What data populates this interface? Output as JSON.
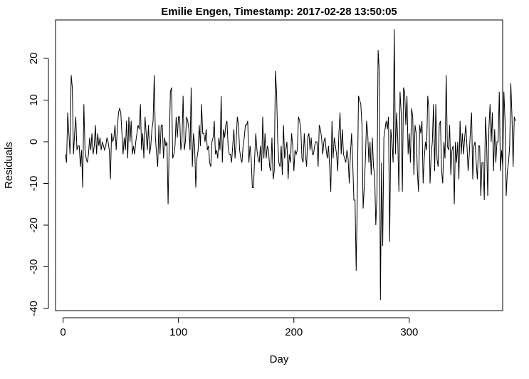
{
  "chart_data": {
    "type": "line",
    "title": "Emilie Engen, Timestamp: 2017-02-28 13:50:05",
    "xlabel": "Day",
    "ylabel": "Residuals",
    "xlim": [
      -5,
      380
    ],
    "ylim": [
      -40,
      27
    ],
    "x_ticks": [
      0,
      100,
      200,
      300
    ],
    "x_tick_labels": [
      "0",
      "100",
      "200",
      "300"
    ],
    "y_ticks": [
      -40,
      -30,
      -20,
      -10,
      0,
      10,
      20
    ],
    "y_tick_labels": [
      "-40",
      "-30",
      "-20",
      "-10",
      "0",
      "10",
      "20"
    ],
    "grid": false,
    "legend": "none",
    "line_color": "#000000",
    "series": [
      {
        "x_start": 2,
        "x_step": 1,
        "values": [
          -3,
          -5,
          7,
          2,
          -3,
          16,
          13,
          -3,
          2,
          6,
          -2,
          -1,
          -1,
          -6,
          -2,
          -11,
          9,
          -2,
          -4,
          -5,
          -3,
          1,
          -2,
          2,
          -3,
          -1,
          4,
          -3,
          2,
          -1,
          1,
          -2,
          0,
          -1,
          -2,
          -1,
          1,
          0,
          -2,
          -9,
          2,
          0,
          1,
          4,
          -2,
          3,
          7,
          8,
          7,
          2,
          -3,
          1,
          -2,
          5,
          -4,
          6,
          0,
          5,
          -3,
          -1,
          -3,
          0,
          2,
          4,
          3,
          9,
          -2,
          2,
          -4,
          6,
          2,
          -2,
          4,
          -3,
          -1,
          3,
          5,
          16,
          1,
          -3,
          -6,
          4,
          -3,
          4,
          4,
          -4,
          1,
          -1,
          0,
          -15,
          0,
          12,
          13,
          -4,
          -3,
          -1,
          6,
          1,
          6,
          6,
          -2,
          0,
          11,
          -2,
          0,
          6,
          5,
          3,
          -2,
          13,
          -6,
          2,
          -1,
          -11,
          -4,
          -2,
          4,
          -1,
          9,
          2,
          2,
          0,
          3,
          -2,
          -1,
          -5,
          -6,
          0,
          1,
          5,
          -3,
          -2,
          -4,
          1,
          -2,
          11,
          -5,
          3,
          1,
          4,
          5,
          -1,
          -3,
          -3,
          -5,
          -1,
          3,
          -4,
          0,
          6,
          4,
          -2,
          -4,
          -5,
          -1,
          1,
          4,
          4,
          5,
          -5,
          -1,
          -4,
          -11,
          -11,
          -4,
          2,
          -2,
          -4,
          -5,
          -1,
          -7,
          6,
          -4,
          2,
          -4,
          -1,
          -2,
          -6,
          -7,
          1,
          -9,
          -7,
          17,
          12,
          0,
          -5,
          -6,
          -1,
          -8,
          4,
          -4,
          -2,
          0,
          -9,
          -3,
          -5,
          2,
          -1,
          -7,
          -2,
          -3,
          -2,
          6,
          5,
          3,
          -4,
          -5,
          2,
          -3,
          -6,
          1,
          2,
          -2,
          1,
          -3,
          -3,
          -1,
          0,
          0,
          -6,
          4,
          3,
          1,
          -3,
          0,
          1,
          -2,
          -4,
          -1,
          -6,
          -12,
          5,
          -4,
          1,
          -1,
          -3,
          -7,
          2,
          7,
          -3,
          3,
          -3,
          -4,
          -5,
          -2,
          -4,
          -10,
          -3,
          2,
          -5,
          -14,
          -14,
          -31,
          -12,
          11,
          10,
          9,
          4,
          -16,
          -11,
          -4,
          5,
          2,
          -5,
          0,
          -8,
          1,
          -6,
          -8,
          -20,
          -13,
          22,
          17,
          -38,
          -5,
          -25,
          1,
          3,
          5,
          3,
          6,
          -24,
          3,
          0,
          -5,
          27,
          -3,
          7,
          1,
          -12,
          12,
          7,
          -12,
          13,
          12,
          4,
          11,
          -3,
          2,
          -5,
          8,
          6,
          -8,
          4,
          2,
          -7,
          -12,
          4,
          2,
          5,
          -10,
          -4,
          0,
          -2,
          11,
          8,
          -10,
          -3,
          0,
          9,
          -7,
          9,
          -4,
          -6,
          4,
          5,
          -7,
          -10,
          0,
          -4,
          16,
          -1,
          -2,
          4,
          -8,
          -2,
          -1,
          -15,
          0,
          -5,
          0,
          -9,
          5,
          -3,
          2,
          -3,
          1,
          4,
          -1,
          -7,
          -3,
          3,
          7,
          -9,
          -1,
          0,
          -5,
          -9,
          -1,
          -1,
          -13,
          -5,
          -5,
          -14,
          6,
          0,
          -13,
          3,
          9,
          0,
          7,
          -7,
          3,
          -5,
          0,
          0,
          12,
          -7,
          -2,
          -6,
          12,
          5,
          -13,
          -7,
          -5,
          -1,
          14,
          6,
          -6,
          6,
          5
        ]
      }
    ]
  }
}
